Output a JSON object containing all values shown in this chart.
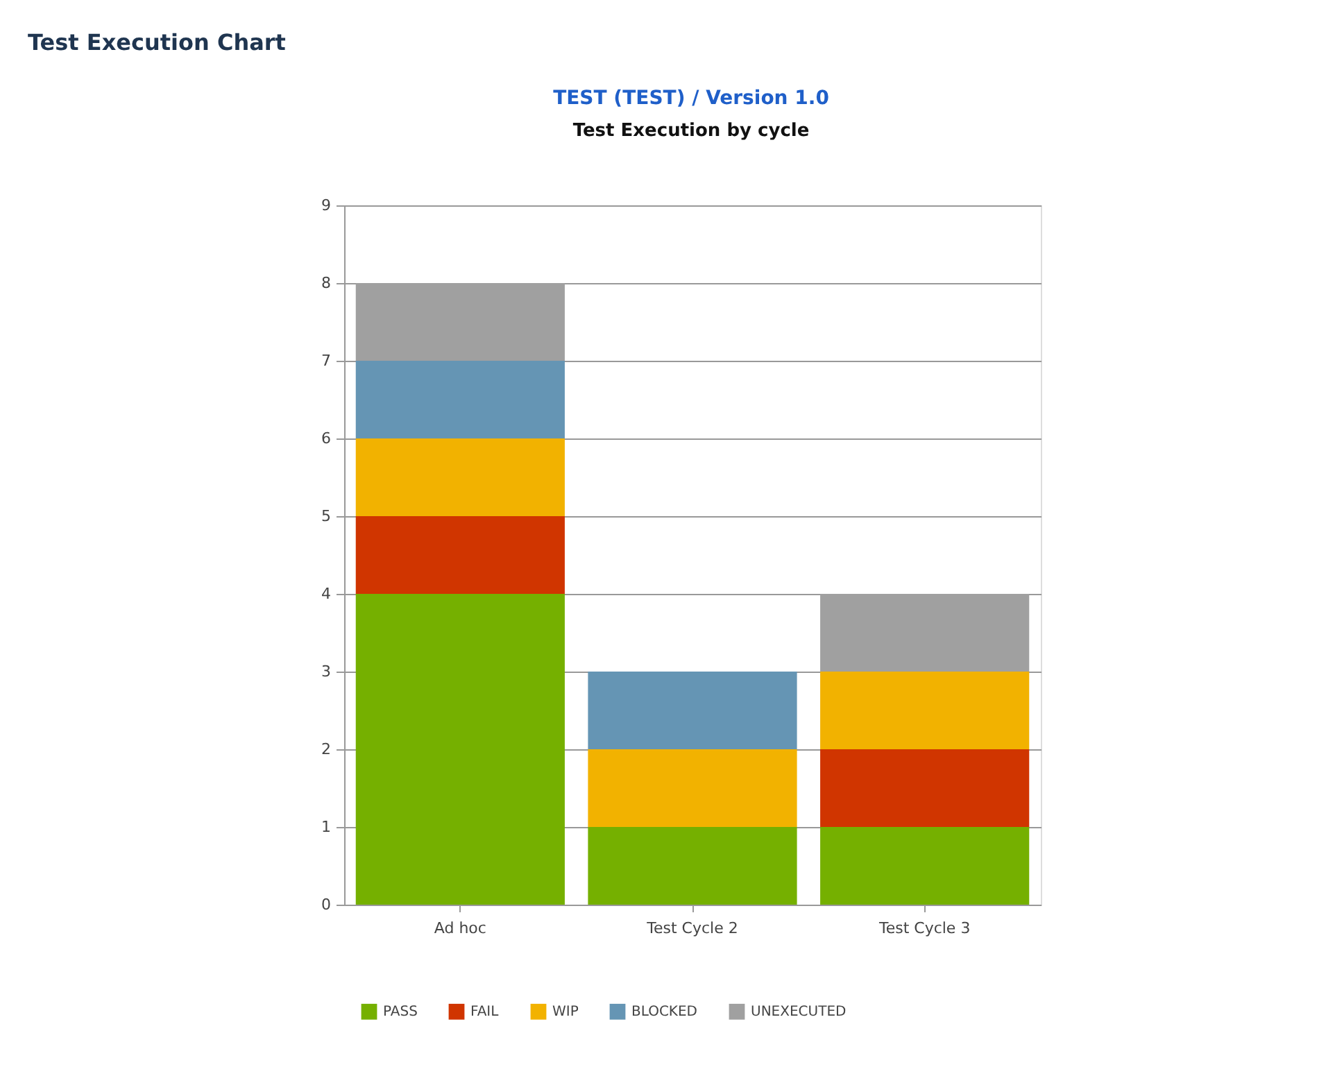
{
  "chart_data": {
    "type": "bar",
    "title": "Test Execution Chart",
    "subtitle": "TEST (TEST) / Version 1.0",
    "annotations": [
      "Test Execution by cycle"
    ],
    "categories": [
      "Ad hoc",
      "Test Cycle 2",
      "Test Cycle 3"
    ],
    "stacked": true,
    "series": [
      {
        "name": "PASS",
        "color": "#75b000",
        "values": [
          4,
          1,
          1
        ]
      },
      {
        "name": "FAIL",
        "color": "#d03500",
        "values": [
          1,
          0,
          1
        ]
      },
      {
        "name": "WIP",
        "color": "#f2b200",
        "values": [
          1,
          1,
          1
        ]
      },
      {
        "name": "BLOCKED",
        "color": "#6595b4",
        "values": [
          1,
          1,
          0
        ]
      },
      {
        "name": "UNEXECUTED",
        "color": "#a0a0a0",
        "values": [
          1,
          0,
          1
        ]
      }
    ],
    "ylim": [
      0,
      9
    ],
    "yticks": [
      0,
      1,
      2,
      3,
      4,
      5,
      6,
      7,
      8,
      9
    ],
    "grid": "y",
    "legend": "bottom"
  }
}
